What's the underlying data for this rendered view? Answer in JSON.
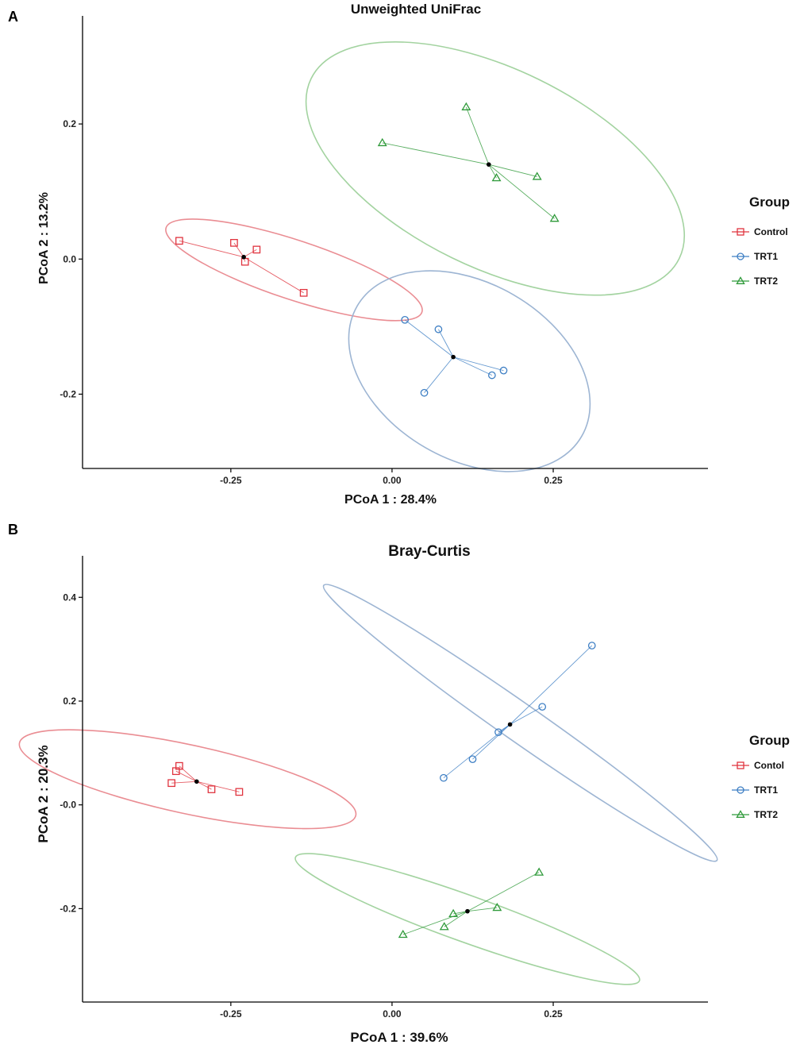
{
  "chart_data": [
    {
      "panel": "A",
      "type": "scatter",
      "title": "Unweighted UniFrac",
      "xlabel": "PCoA 1 : 28.4%",
      "ylabel": "PCoA 2 : 13.2%",
      "xlim": [
        -0.48,
        0.49
      ],
      "ylim": [
        -0.31,
        0.36
      ],
      "xticks": [
        -0.25,
        0.0,
        0.25
      ],
      "xtick_labels": [
        "-0.25",
        "0.00",
        "0.25"
      ],
      "yticks": [
        0.2,
        0.0,
        -0.2
      ],
      "ytick_labels": [
        "0.2",
        "0.0",
        "-0.2"
      ],
      "legend": {
        "title": "Group",
        "entries": [
          {
            "label": "Control",
            "color": "#e0343f",
            "marker": "square"
          },
          {
            "label": "TRT1",
            "color": "#3e7fc4",
            "marker": "circle"
          },
          {
            "label": "TRT2",
            "color": "#2f9a3a",
            "marker": "triangle"
          }
        ]
      },
      "series": [
        {
          "name": "Control",
          "color": "#e0343f",
          "ellipse_color": "#ea8d93",
          "marker": "square",
          "centroid": [
            -0.23,
            0.003
          ],
          "points": [
            [
              -0.33,
              0.027
            ],
            [
              -0.245,
              0.024
            ],
            [
              -0.21,
              0.014
            ],
            [
              -0.228,
              -0.004
            ],
            [
              -0.137,
              -0.05
            ]
          ],
          "ellipse": {
            "cx": -0.152,
            "cy": -0.016,
            "rx": 0.208,
            "ry": 0.044,
            "angle_deg": -17.5
          }
        },
        {
          "name": "TRT1",
          "color": "#3e7fc4",
          "ellipse_color": "#9db5d3",
          "marker": "circle",
          "centroid": [
            0.095,
            -0.145
          ],
          "points": [
            [
              0.02,
              -0.09
            ],
            [
              0.072,
              -0.104
            ],
            [
              0.155,
              -0.172
            ],
            [
              0.173,
              -0.165
            ],
            [
              0.05,
              -0.198
            ]
          ],
          "ellipse": {
            "cx": 0.12,
            "cy": -0.166,
            "rx": 0.199,
            "ry": 0.132,
            "angle_deg": -29
          }
        },
        {
          "name": "TRT2",
          "color": "#2f9a3a",
          "ellipse_color": "#a3d3a0",
          "marker": "triangle",
          "centroid": [
            0.15,
            0.14
          ],
          "points": [
            [
              -0.015,
              0.172
            ],
            [
              0.115,
              0.225
            ],
            [
              0.225,
              0.122
            ],
            [
              0.162,
              0.12
            ],
            [
              0.252,
              0.06
            ]
          ],
          "ellipse": {
            "cx": 0.16,
            "cy": 0.134,
            "rx": 0.315,
            "ry": 0.148,
            "angle_deg": -25
          }
        }
      ]
    },
    {
      "panel": "B",
      "type": "scatter",
      "title": "Bray-Curtis",
      "xlabel": "PCoA 1 : 39.6%",
      "ylabel": "PCoA 2 : 20.3%",
      "xlim": [
        -0.48,
        0.49
      ],
      "ylim": [
        -0.38,
        0.48
      ],
      "xticks": [
        -0.25,
        0.0,
        0.25
      ],
      "xtick_labels": [
        "-0.25",
        "0.00",
        "0.25"
      ],
      "yticks": [
        0.4,
        0.2,
        0.0,
        -0.2
      ],
      "ytick_labels": [
        "0.4",
        "0.2",
        "-0.0",
        "-0.2"
      ],
      "legend": {
        "title": "Group",
        "entries": [
          {
            "label": "Contol",
            "color": "#e0343f",
            "marker": "square"
          },
          {
            "label": "TRT1",
            "color": "#3e7fc4",
            "marker": "circle"
          },
          {
            "label": "TRT2",
            "color": "#2f9a3a",
            "marker": "triangle"
          }
        ]
      },
      "series": [
        {
          "name": "Contol",
          "color": "#e0343f",
          "ellipse_color": "#ea8d93",
          "marker": "square",
          "centroid": [
            -0.303,
            0.045
          ],
          "points": [
            [
              -0.33,
              0.075
            ],
            [
              -0.335,
              0.065
            ],
            [
              -0.342,
              0.042
            ],
            [
              -0.28,
              0.03
            ],
            [
              -0.237,
              0.025
            ]
          ],
          "ellipse": {
            "cx": -0.317,
            "cy": 0.0495,
            "rx": 0.27,
            "ry": 0.065,
            "angle_deg": -15
          }
        },
        {
          "name": "TRT1",
          "color": "#3e7fc4",
          "ellipse_color": "#9db5d3",
          "marker": "circle",
          "centroid": [
            0.183,
            0.155
          ],
          "points": [
            [
              0.08,
              0.052
            ],
            [
              0.125,
              0.088
            ],
            [
              0.165,
              0.14
            ],
            [
              0.233,
              0.189
            ],
            [
              0.31,
              0.307
            ]
          ],
          "ellipse": {
            "cx": 0.199,
            "cy": 0.158,
            "rx": 0.404,
            "ry": 0.033,
            "angle_deg": -41
          }
        },
        {
          "name": "TRT2",
          "color": "#2f9a3a",
          "ellipse_color": "#a3d3a0",
          "marker": "triangle",
          "centroid": [
            0.117,
            -0.205
          ],
          "points": [
            [
              0.017,
              -0.25
            ],
            [
              0.095,
              -0.21
            ],
            [
              0.081,
              -0.235
            ],
            [
              0.163,
              -0.198
            ],
            [
              0.228,
              -0.13
            ]
          ],
          "ellipse": {
            "cx": 0.117,
            "cy": -0.22,
            "rx": 0.292,
            "ry": 0.043,
            "angle_deg": -24
          }
        }
      ]
    }
  ]
}
